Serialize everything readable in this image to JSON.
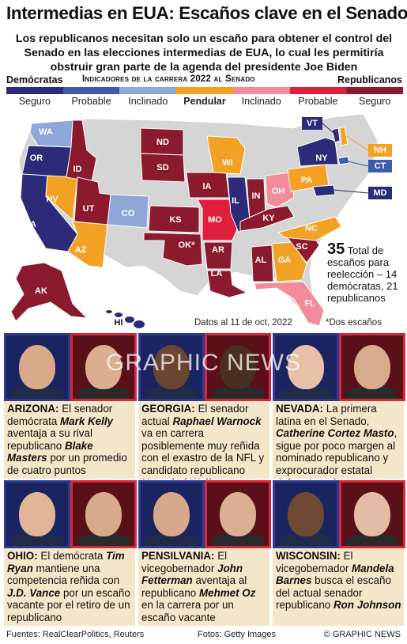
{
  "header": {
    "title": "Intermedias en EUA: Escaños clave en el Senado",
    "subtitle": "Los republicanos necesitan solo un escaño para obtener el control del Senado en las elecciones intermedias de EUA, lo cual les permitiría obstruir gran parte de la agenda del presidente Joe Biden"
  },
  "legend": {
    "democrats": "Demócratas",
    "title": "Indicadores de la carrera 2022 al Senado",
    "republicans": "Republicanos",
    "colors": [
      "#2b2b7a",
      "#3f5aa8",
      "#8fa6d8",
      "#f2a124",
      "#f28c9c",
      "#e11e3c",
      "#8b1a2e"
    ],
    "labels": [
      "Seguro",
      "Probable",
      "Inclinado",
      "Pendular",
      "Inclinado",
      "Probable",
      "Seguro"
    ]
  },
  "map": {
    "states": {
      "WA": "WA",
      "OR": "OR",
      "CA": "CA",
      "NV": "NV",
      "ID": "ID",
      "UT": "UT",
      "AZ": "AZ",
      "CO": "CO",
      "ND": "ND",
      "SD": "SD",
      "KS": "KS",
      "OK": "OK*",
      "IA": "IA",
      "MO": "MO",
      "AR": "AR",
      "LA": "LA",
      "WI": "WI",
      "IL": "IL",
      "IN": "IN",
      "OH": "OH",
      "KY": "KY",
      "AL": "AL",
      "GA": "GA",
      "SC": "SC",
      "NC": "NC",
      "FL": "FL",
      "PA": "PA",
      "NY": "NY",
      "VT": "VT",
      "NH": "NH",
      "CT": "CT",
      "MD": "MD",
      "AK": "AK",
      "HI": "HI"
    }
  },
  "totals": {
    "number": "35",
    "text": "Total de escaños para reelección – 14 demócratas, 21 republicanos"
  },
  "notes": {
    "date": "Datos al 11 de oct, 2022",
    "star": "*Dos escaños"
  },
  "watermark": "GRAPHIC NEWS",
  "races": [
    {
      "state": "ARIZONA:",
      "parts": [
        "El senador demócrata ",
        "Mark Kelly",
        " aventaja a su rival republicano ",
        "Blake Masters",
        " por un promedio de cuatro puntos"
      ]
    },
    {
      "state": "GEORGIA:",
      "parts": [
        "El senador actual ",
        "Raphael Warnock",
        " va en carrera posiblemente muy reñida con el exastro de la NFL y candidato republicano ",
        "Herschel Walker",
        ""
      ]
    },
    {
      "state": "NEVADA:",
      "parts": [
        "La primera latina en el Senado, ",
        "Catherine Cortez Masto",
        ", sigue por poco margen al nominado republicano y exprocurador estatal ",
        "Adam Laxalt",
        ""
      ]
    },
    {
      "state": "OHIO:",
      "parts": [
        "El demócrata ",
        "Tim Ryan",
        " mantiene una competencia reñida con ",
        "J.D. Vance",
        " por un escaño vacante por el retiro de un republicano"
      ]
    },
    {
      "state": "PENSILVANIA:",
      "parts": [
        "El vicegobernador ",
        "John Fetterman",
        " aventaja al republicano ",
        "Mehmet Oz",
        " en la carrera por un escaño vacante"
      ]
    },
    {
      "state": "WISCONSIN:",
      "parts": [
        "El vicegobernador ",
        "Mandela Barnes",
        " busca el escaño del actual senador republicano ",
        "Ron Johnson",
        ""
      ]
    }
  ],
  "footer": {
    "sources": "Fuentes: RealClearPolitics, Reuters",
    "photos": "Fotos: Getty Images",
    "credit": "© GRAPHIC NEWS"
  }
}
